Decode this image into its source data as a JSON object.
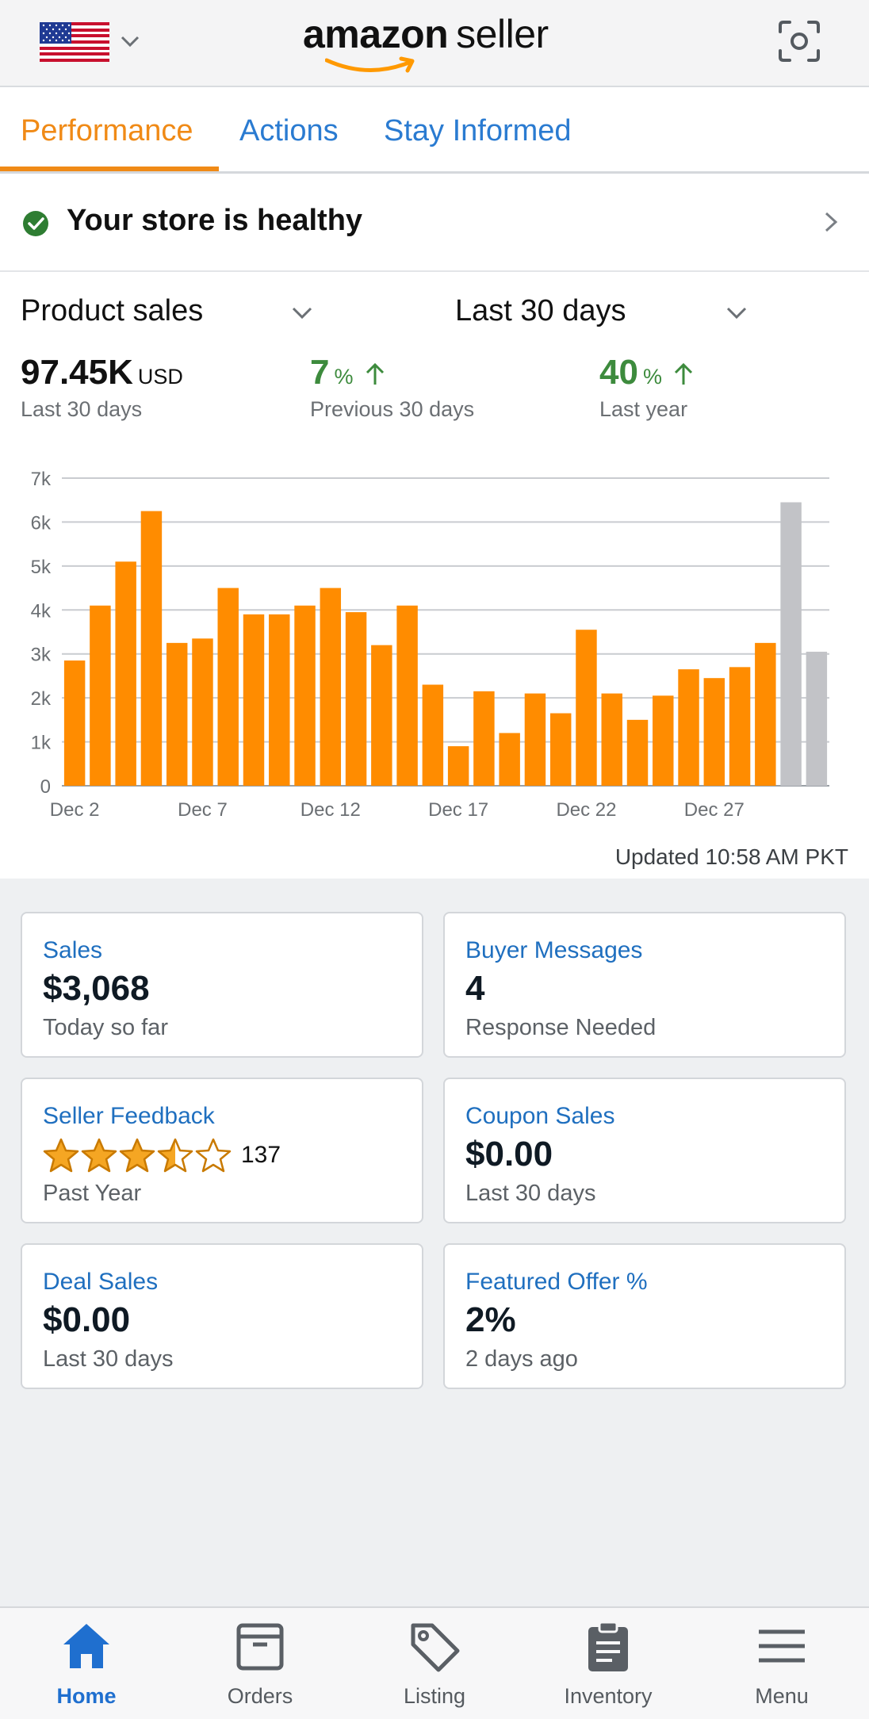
{
  "header": {
    "logo_bold": "amazon",
    "logo_light": "seller",
    "flag_icon": "us-flag-icon",
    "chevron_icon": "chevron-down-icon",
    "scan_icon": "scan-icon"
  },
  "tabs": [
    {
      "label": "Performance",
      "active": true
    },
    {
      "label": "Actions",
      "active": false
    },
    {
      "label": "Stay Informed",
      "active": false
    }
  ],
  "health": {
    "text": "Your store is healthy",
    "icon": "check-circle-icon",
    "status_color": "#2e7d32"
  },
  "chart_selectors": {
    "metric": "Product sales",
    "range": "Last 30 days"
  },
  "metrics": {
    "total_value": "97.45K",
    "total_unit": "USD",
    "total_label": "Last 30 days",
    "vs_previous_value": "7",
    "vs_previous_unit": "%",
    "vs_previous_label": "Previous 30 days",
    "vs_year_value": "40",
    "vs_year_unit": "%",
    "vs_year_label": "Last year",
    "trend_icon": "arrow-up-icon"
  },
  "chart_data": {
    "type": "bar",
    "y_ticks": [
      "0",
      "1k",
      "2k",
      "3k",
      "4k",
      "5k",
      "6k",
      "7k"
    ],
    "ylim": [
      0,
      7000
    ],
    "x_tick_labels": [
      "Dec 2",
      "Dec 7",
      "Dec 12",
      "Dec 17",
      "Dec 22",
      "Dec 27"
    ],
    "grid": true,
    "colors": {
      "bar": "#ff8c00",
      "highlight": "#c2c3c7"
    },
    "values": [
      2850,
      4100,
      5100,
      6250,
      3250,
      3350,
      4500,
      3900,
      3900,
      4100,
      4500,
      3950,
      3200,
      4100,
      2300,
      900,
      2150,
      1200,
      2100,
      1650,
      3550,
      2100,
      1500,
      2050,
      2650,
      2450,
      2700,
      3250,
      6450,
      3050
    ],
    "highlighted": [
      28,
      29
    ]
  },
  "updated": "Updated 10:58 AM PKT",
  "cards": [
    {
      "title": "Sales",
      "value": "$3,068",
      "sub": "Today so far"
    },
    {
      "title": "Buyer Messages",
      "value": "4",
      "sub": "Response Needed"
    },
    {
      "title": "Seller Feedback",
      "rating": 3.5,
      "rating_count": "137",
      "sub": "Past Year"
    },
    {
      "title": "Coupon Sales",
      "value": "$0.00",
      "sub": "Last 30 days"
    },
    {
      "title": "Deal Sales",
      "value": "$0.00",
      "sub": "Last 30 days"
    },
    {
      "title": "Featured Offer %",
      "value": "2%",
      "sub": "2 days ago"
    }
  ],
  "nav": [
    {
      "label": "Home",
      "icon": "home-icon",
      "active": true
    },
    {
      "label": "Orders",
      "icon": "orders-box-icon",
      "active": false
    },
    {
      "label": "Listing",
      "icon": "tag-icon",
      "active": false
    },
    {
      "label": "Inventory",
      "icon": "clipboard-icon",
      "active": false
    },
    {
      "label": "Menu",
      "icon": "menu-icon",
      "active": false
    }
  ]
}
